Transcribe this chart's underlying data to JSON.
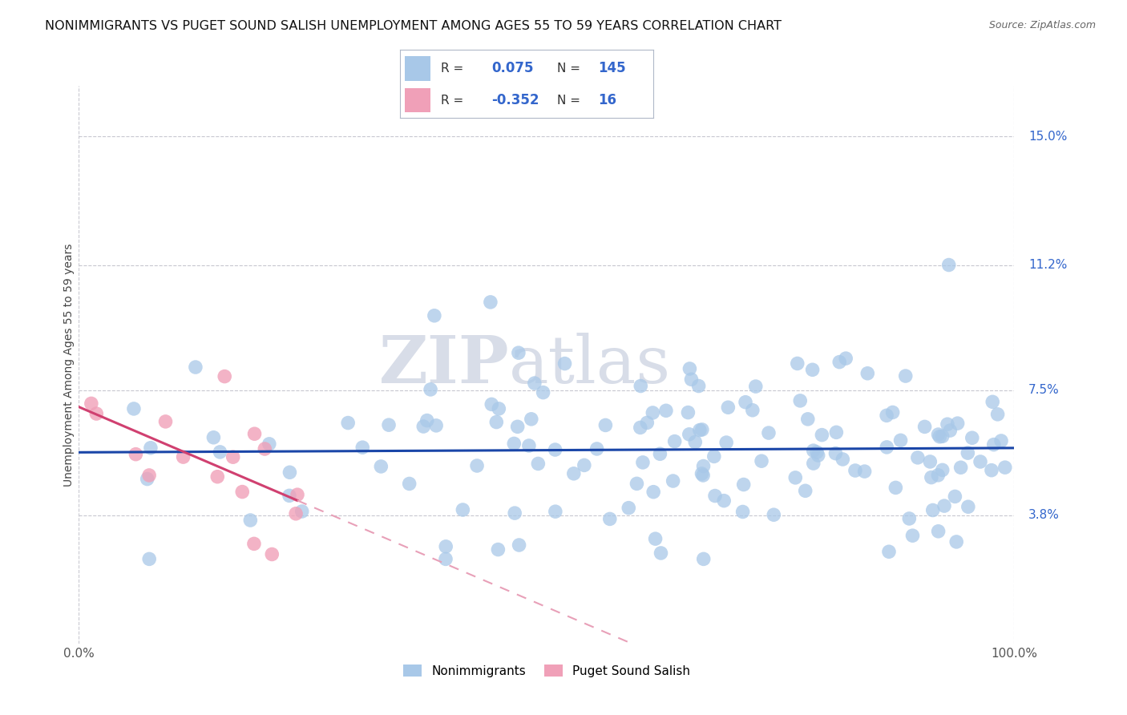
{
  "title": "NONIMMIGRANTS VS PUGET SOUND SALISH UNEMPLOYMENT AMONG AGES 55 TO 59 YEARS CORRELATION CHART",
  "source": "Source: ZipAtlas.com",
  "ylabel": "Unemployment Among Ages 55 to 59 years",
  "xlim": [
    0,
    100
  ],
  "ylim": [
    0,
    16.5
  ],
  "ytick_vals": [
    3.8,
    7.5,
    11.2,
    15.0
  ],
  "ytick_labels": [
    "3.8%",
    "7.5%",
    "11.2%",
    "15.0%"
  ],
  "xtick_labels": [
    "0.0%",
    "100.0%"
  ],
  "r_nonimmigrants": 0.075,
  "n_nonimmigrants": 145,
  "r_salish": -0.352,
  "n_salish": 16,
  "nonimmigrant_color": "#a8c8e8",
  "salish_color": "#f0a0b8",
  "trend_nonimmigrant_color": "#1a46a8",
  "trend_salish_solid_color": "#d04070",
  "trend_salish_dash_color": "#e8a0b8",
  "background_color": "#ffffff",
  "grid_color": "#c8c8d0",
  "legend_r_color": "#3366cc",
  "legend_box_border": "#b0b8c8",
  "watermark_color": "#d8dde8",
  "title_color": "#111111",
  "source_color": "#666666",
  "ylabel_color": "#444444"
}
